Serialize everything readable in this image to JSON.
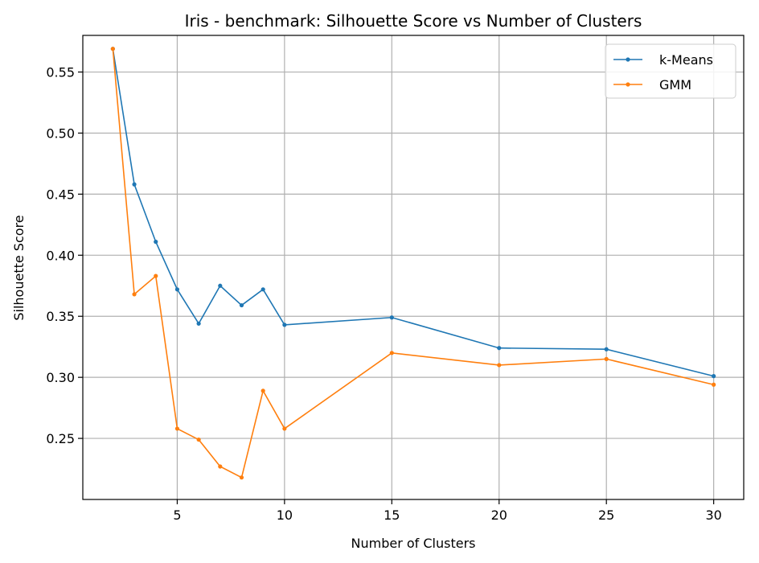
{
  "chart_data": {
    "type": "line",
    "title": "Iris - benchmark: Silhouette Score vs Number of Clusters",
    "xlabel": "Number of Clusters",
    "ylabel": "Silhouette Score",
    "xlim": [
      0.6,
      31.4
    ],
    "ylim": [
      0.2,
      0.58
    ],
    "xticks": [
      5,
      10,
      15,
      20,
      25,
      30
    ],
    "yticks": [
      0.25,
      0.3,
      0.35,
      0.4,
      0.45,
      0.5,
      0.55
    ],
    "xtick_labels": [
      "5",
      "10",
      "15",
      "20",
      "25",
      "30"
    ],
    "ytick_labels": [
      "0.25",
      "0.30",
      "0.35",
      "0.40",
      "0.45",
      "0.50",
      "0.55"
    ],
    "grid": true,
    "legend_position": "top-right",
    "x": [
      2,
      3,
      4,
      5,
      6,
      7,
      8,
      9,
      10,
      15,
      20,
      25,
      30
    ],
    "series": [
      {
        "name": "k-Means",
        "color": "#1f77b4",
        "values": [
          0.569,
          0.458,
          0.411,
          0.372,
          0.344,
          0.375,
          0.359,
          0.372,
          0.343,
          0.349,
          0.324,
          0.323,
          0.301
        ]
      },
      {
        "name": "GMM",
        "color": "#ff7f0e",
        "values": [
          0.569,
          0.368,
          0.383,
          0.258,
          0.249,
          0.227,
          0.218,
          0.289,
          0.258,
          0.32,
          0.31,
          0.315,
          0.294
        ]
      }
    ]
  }
}
